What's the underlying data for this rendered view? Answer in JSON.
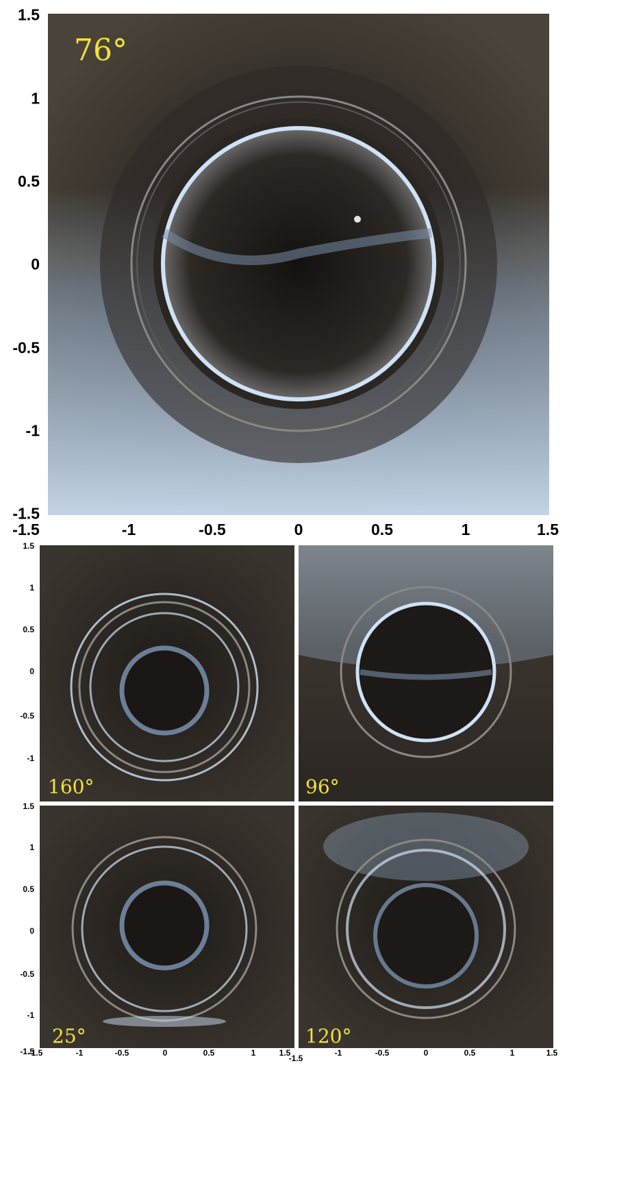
{
  "main_panel": {
    "angle_label": "76°",
    "y_ticks": [
      "1.5",
      "1",
      "0.5",
      "0",
      "-0.5",
      "-1",
      "-1.5"
    ],
    "x_ticks": [
      "-1.5",
      "-1",
      "-0.5",
      "0",
      "0.5",
      "1",
      "1.5"
    ]
  },
  "small_panels": {
    "top_left": {
      "angle_label": "160°"
    },
    "top_right": {
      "angle_label": "96°"
    },
    "bottom_left": {
      "angle_label": "25°"
    },
    "bottom_right": {
      "angle_label": "120°"
    }
  },
  "small_y_ticks_upper": [
    "1.5",
    "1",
    "0.5",
    "0",
    "-0.5",
    "-1"
  ],
  "small_y_ticks_lower": [
    "1.5",
    "1",
    "0.5",
    "0",
    "-0.5",
    "-1",
    "-1.5"
  ],
  "small_x_ticks": [
    "-1.5",
    "-1",
    "-0.5",
    "0",
    "0.5",
    "1",
    "1.5",
    "-1.5",
    "-1",
    "-0.5",
    "0",
    "0.5",
    "1",
    "1.5"
  ],
  "colors": {
    "background": "#2e2a26",
    "sky_blue": "#b9cfe6",
    "ring_light": "#cfe2f5",
    "angle_label": "#f2e23a"
  }
}
